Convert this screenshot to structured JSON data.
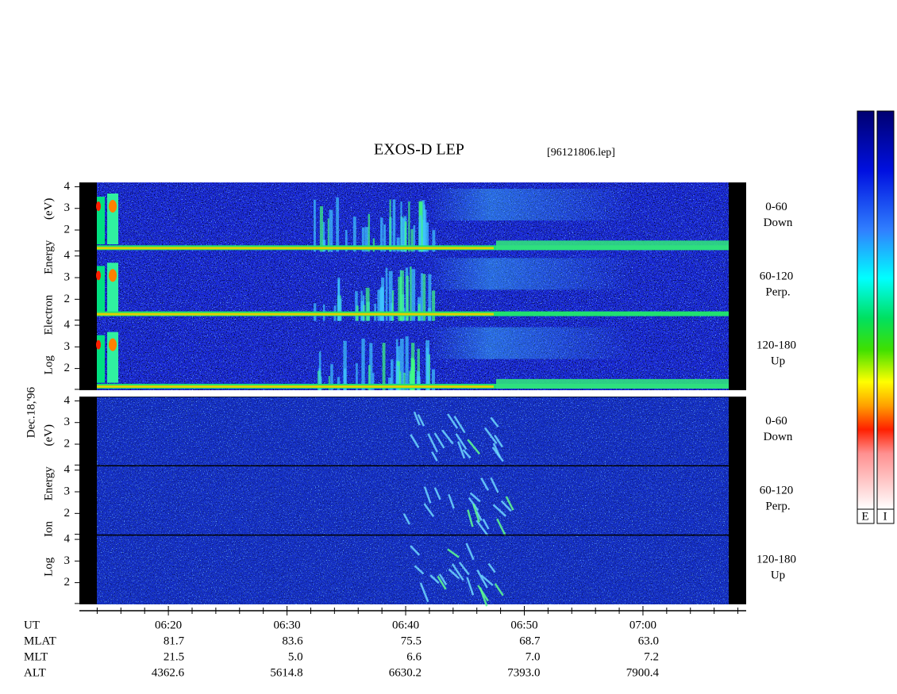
{
  "chart_data": {
    "type": "spectrogram",
    "title": "EXOS-D LEP",
    "file_label": "[96121806.lep]",
    "date_label": "Dec.18,'96",
    "ylim": [
      1,
      4.2
    ],
    "yticks": [
      4,
      3,
      2
    ],
    "xlim": [
      12.5,
      68.7
    ],
    "xticks": [
      {
        "value": 20,
        "label": "06:20"
      },
      {
        "value": 30,
        "label": "06:30"
      },
      {
        "value": 40,
        "label": "06:40"
      },
      {
        "value": 50,
        "label": "06:50"
      },
      {
        "value": 60,
        "label": "07:00"
      }
    ],
    "xminor_ticks": [
      14,
      16,
      18,
      22,
      24,
      26,
      28,
      32,
      34,
      36,
      38,
      42,
      44,
      46,
      48,
      52,
      54,
      56,
      58,
      62,
      64,
      66,
      68
    ],
    "groups": [
      {
        "y_label": "Log Electron Energy (eV)",
        "panels": [
          {
            "angle": "0-60",
            "direction": "Down"
          },
          {
            "angle": "60-120",
            "direction": "Perp."
          },
          {
            "angle": "120-180",
            "direction": "Up"
          }
        ]
      },
      {
        "y_label": "Log Ion Energy (eV)",
        "panels": [
          {
            "angle": "0-60",
            "direction": "Down"
          },
          {
            "angle": "60-120",
            "direction": "Perp."
          },
          {
            "angle": "120-180",
            "direction": "Up"
          }
        ]
      }
    ],
    "x_rows": {
      "UT": "UT",
      "rows": [
        {
          "name": "MLAT",
          "values": [
            "81.7",
            "83.6",
            "75.5",
            "68.7",
            "63.0"
          ]
        },
        {
          "name": "MLT",
          "values": [
            "21.5",
            "5.0",
            "6.6",
            "7.0",
            "7.2"
          ]
        },
        {
          "name": "ALT",
          "values": [
            "4362.6",
            "5614.8",
            "6630.2",
            "7393.0",
            "7900.4"
          ]
        }
      ]
    },
    "colorbar_labels": [
      "E",
      "I"
    ]
  }
}
